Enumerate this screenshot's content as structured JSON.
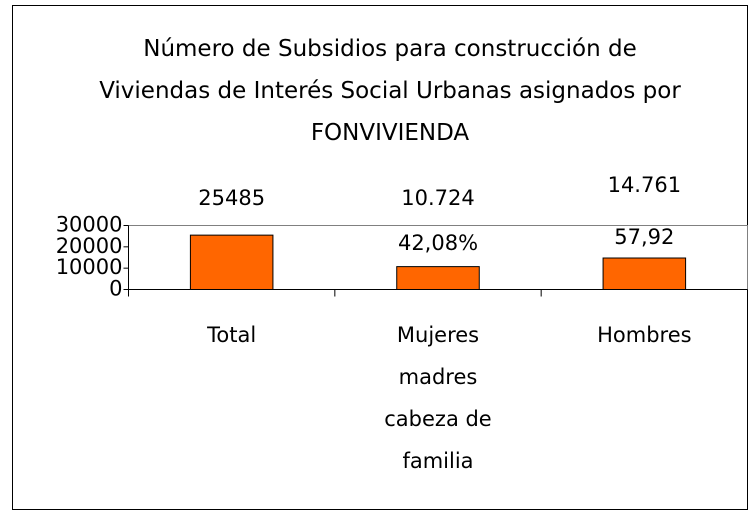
{
  "chart_data": {
    "type": "bar",
    "title": "Número de Subsidios para construcción de Viviendas de Interés Social Urbanas asignados por FONVIVIENDA",
    "categories": [
      "Total",
      "Mujeres madres cabeza de familia",
      "Hombres"
    ],
    "values": [
      25485,
      10724,
      14761
    ],
    "value_labels": [
      "25485",
      "10.724",
      "14.761"
    ],
    "annotations": [
      "42,08%",
      "57,92"
    ],
    "color": "#ff6600",
    "ylim": [
      0,
      30000
    ],
    "yticks": [
      0,
      10000,
      20000,
      30000
    ],
    "grid": false
  }
}
